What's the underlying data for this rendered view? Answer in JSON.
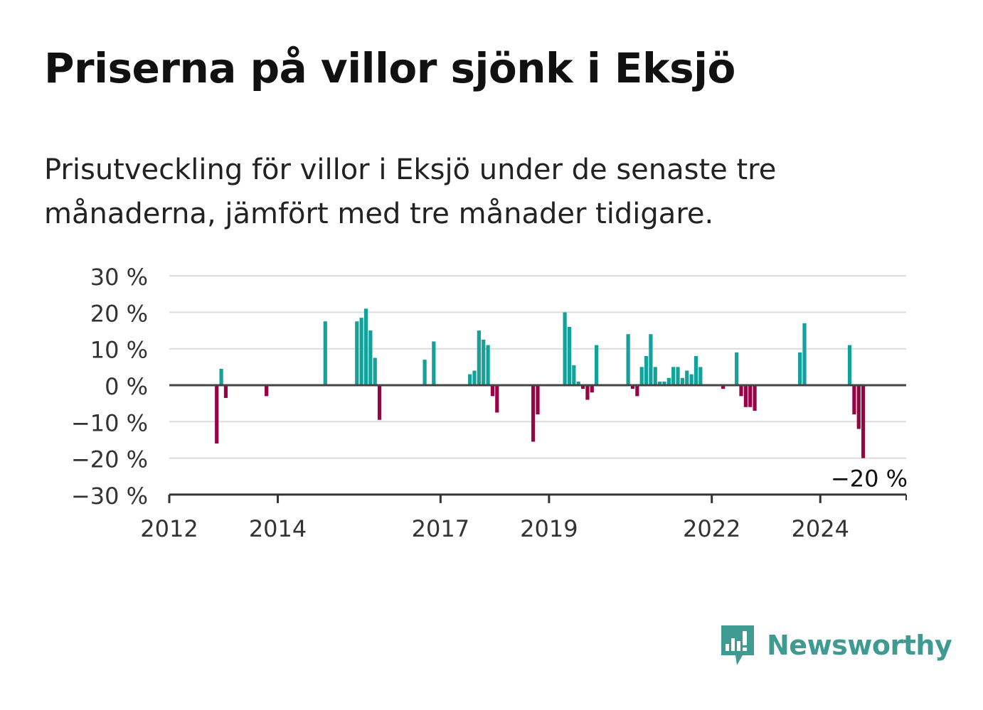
{
  "title": "Priserna på villor sjönk i Eksjö",
  "subtitle": "Prisutveckling för villor i Eksjö under de senaste tre månaderna, jämfört med tre månader tidigare.",
  "brand": {
    "name": "Newsworthy",
    "color": "#3f9a92",
    "icon": "newsworthy-logo-icon"
  },
  "chart_data": {
    "type": "bar",
    "title": "",
    "xlabel": "",
    "ylabel": "",
    "ylim": [
      -30,
      30
    ],
    "yticks": [
      {
        "value": 30,
        "label": "30 %"
      },
      {
        "value": 20,
        "label": "20 %"
      },
      {
        "value": 10,
        "label": "10 %"
      },
      {
        "value": 0,
        "label": "0 %"
      },
      {
        "value": -10,
        "label": "−10 %"
      },
      {
        "value": -20,
        "label": "−20 %"
      },
      {
        "value": -30,
        "label": "−30 %"
      }
    ],
    "xlim": [
      "2012-01",
      "2025-08"
    ],
    "xticks": [
      {
        "value": "2012-01",
        "label": "2012"
      },
      {
        "value": "2014-01",
        "label": "2014"
      },
      {
        "value": "2017-01",
        "label": "2017"
      },
      {
        "value": "2019-01",
        "label": "2019"
      },
      {
        "value": "2022-01",
        "label": "2022"
      },
      {
        "value": "2024-01",
        "label": "2024"
      }
    ],
    "grid": true,
    "colors": {
      "positive": "#13a29a",
      "negative": "#960445"
    },
    "annotation": {
      "label": "−20 %",
      "month": "2024-12",
      "value": -20
    },
    "months": [
      "2012-11",
      "2012-12",
      "2013-01",
      "2013-10",
      "2014-11",
      "2015-06",
      "2015-07",
      "2015-08",
      "2015-09",
      "2015-10",
      "2015-11",
      "2016-09",
      "2016-11",
      "2017-07",
      "2017-08",
      "2017-09",
      "2017-10",
      "2017-11",
      "2017-12",
      "2018-01",
      "2018-09",
      "2018-10",
      "2019-04",
      "2019-05",
      "2019-06",
      "2019-07",
      "2019-08",
      "2019-09",
      "2019-10",
      "2019-11",
      "2020-06",
      "2020-07",
      "2020-08",
      "2020-09",
      "2020-10",
      "2020-11",
      "2020-12",
      "2021-01",
      "2021-02",
      "2021-03",
      "2021-04",
      "2021-05",
      "2021-06",
      "2021-07",
      "2021-08",
      "2021-09",
      "2021-10",
      "2022-03",
      "2022-06",
      "2022-07",
      "2022-08",
      "2022-09",
      "2022-10",
      "2023-08",
      "2023-09",
      "2023-10",
      "2024-07",
      "2024-08",
      "2024-09",
      "2024-10"
    ],
    "values": [
      -16,
      4.5,
      -3.5,
      -3,
      17.5,
      17.5,
      18.5,
      21,
      15,
      7.5,
      -9.5,
      7,
      12,
      3,
      4,
      15,
      12.5,
      11,
      -3,
      -7.5,
      -15.5,
      -8,
      20,
      16,
      5.5,
      1,
      -1,
      -4,
      -2,
      11,
      14,
      -1,
      -3,
      5,
      8,
      14,
      5,
      1,
      1,
      2,
      5,
      5,
      2,
      4,
      3,
      8,
      5,
      -1,
      9,
      -3,
      -6,
      -6,
      -7,
      9,
      17,
      0,
      11,
      -8,
      -12,
      -20
    ]
  }
}
